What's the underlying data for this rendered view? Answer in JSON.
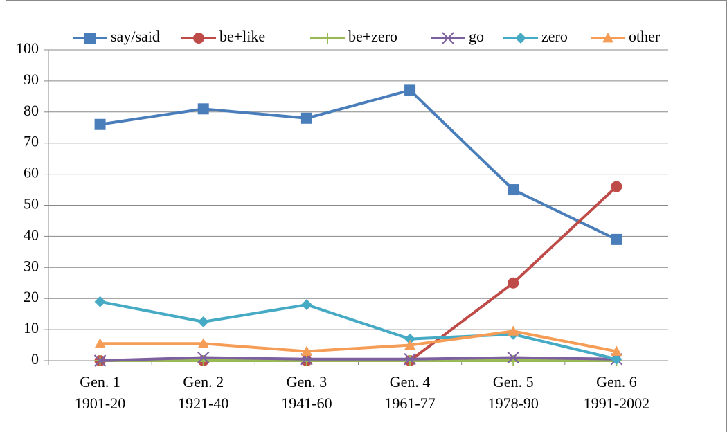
{
  "chart_data": {
    "type": "line",
    "categories": [
      [
        "Gen. 1",
        "1901-20"
      ],
      [
        "Gen. 2",
        "1921-40"
      ],
      [
        "Gen. 3",
        "1941-60"
      ],
      [
        "Gen. 4",
        "1961-77"
      ],
      [
        "Gen. 5",
        "1978-90"
      ],
      [
        "Gen. 6",
        "1991-2002"
      ]
    ],
    "series": [
      {
        "name": "say/said",
        "color": "#4a7ebb",
        "marker": "square",
        "values": [
          76,
          81,
          78,
          87,
          55,
          39
        ]
      },
      {
        "name": "be+like",
        "color": "#be4b48",
        "marker": "circle",
        "values": [
          0,
          0,
          0,
          0,
          25,
          56
        ]
      },
      {
        "name": "be+zero",
        "color": "#98b954",
        "marker": "plus",
        "values": [
          0,
          0,
          0,
          0,
          0,
          0
        ]
      },
      {
        "name": "go",
        "color": "#7d60a0",
        "marker": "x",
        "values": [
          0,
          1,
          0.5,
          0.5,
          1,
          0.5
        ]
      },
      {
        "name": "zero",
        "color": "#46aac5",
        "marker": "diamond",
        "values": [
          19,
          12.5,
          18,
          7,
          8.5,
          0.5
        ]
      },
      {
        "name": "other",
        "color": "#f59d56",
        "marker": "triangle",
        "values": [
          5.5,
          5.5,
          3,
          5,
          9.5,
          3
        ]
      }
    ],
    "ylim": [
      0,
      100
    ],
    "yticks": [
      0,
      10,
      20,
      30,
      40,
      50,
      60,
      70,
      80,
      90,
      100
    ],
    "grid": true,
    "legend": "top"
  }
}
